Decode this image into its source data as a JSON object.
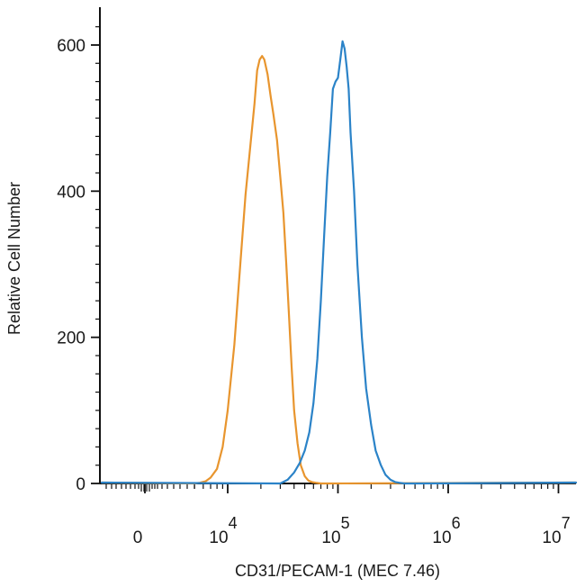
{
  "chart_data": {
    "type": "line",
    "title": "",
    "xlabel": "CD31/PECAM-1 (MEC 7.46)",
    "ylabel": "Relative Cell Number",
    "xscale": "log (biexponential, with 0)",
    "ylim": [
      0,
      640
    ],
    "y_ticks": [
      {
        "value": 0,
        "label": "0"
      },
      {
        "value": 200,
        "label": "200"
      },
      {
        "value": 400,
        "label": "400"
      },
      {
        "value": 600,
        "label": "600"
      }
    ],
    "x_ticks": [
      {
        "value": 0,
        "base": "0",
        "exp": ""
      },
      {
        "value": 10000,
        "base": "10",
        "exp": "4"
      },
      {
        "value": 100000,
        "base": "10",
        "exp": "5"
      },
      {
        "value": 1000000,
        "base": "10",
        "exp": "6"
      },
      {
        "value": 10000000,
        "base": "10",
        "exp": "7"
      }
    ],
    "grid": false,
    "legend": "none",
    "series": [
      {
        "color": "#e8952e",
        "x": [
          5000,
          5600,
          6300,
          7000,
          8000,
          9000,
          10000,
          11500,
          13000,
          14500,
          16000,
          17500,
          18500,
          19500,
          20500,
          21500,
          23000,
          24500,
          26000,
          28000,
          30000,
          32000,
          34000,
          36000,
          38000,
          40000,
          43000,
          46000,
          50000,
          54000,
          58000,
          63000,
          70000,
          80000
        ],
        "y": [
          0,
          1,
          3,
          8,
          20,
          50,
          100,
          190,
          300,
          395,
          460,
          520,
          565,
          580,
          585,
          580,
          560,
          530,
          505,
          470,
          420,
          370,
          300,
          230,
          160,
          100,
          55,
          25,
          10,
          4,
          2,
          1,
          0,
          0
        ]
      },
      {
        "color": "#2b83c8",
        "x": [
          30000,
          35000,
          40000,
          45000,
          50000,
          55000,
          60000,
          65000,
          70000,
          75000,
          80000,
          85000,
          90000,
          95000,
          100000,
          105000,
          110000,
          115000,
          120000,
          125000,
          130000,
          140000,
          150000,
          165000,
          180000,
          200000,
          220000,
          245000,
          270000,
          300000,
          330000,
          360000,
          400000,
          450000,
          500000
        ],
        "y": [
          0,
          5,
          15,
          28,
          45,
          70,
          110,
          170,
          250,
          340,
          420,
          480,
          540,
          550,
          555,
          580,
          605,
          595,
          570,
          540,
          480,
          400,
          300,
          200,
          130,
          80,
          45,
          25,
          12,
          5,
          2,
          1,
          0,
          0,
          0
        ]
      }
    ]
  }
}
